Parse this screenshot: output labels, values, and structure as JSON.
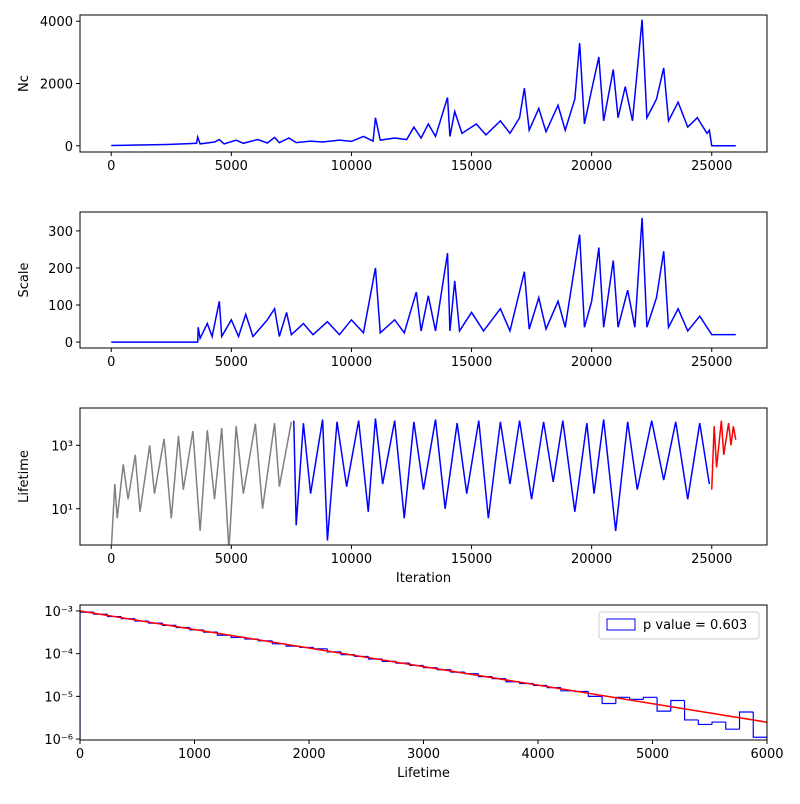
{
  "chart_data": [
    {
      "type": "line",
      "ylabel": "Nc",
      "xlim": [
        -1300,
        27300
      ],
      "ylim": [
        -200,
        4200
      ],
      "xticks": [
        0,
        5000,
        10000,
        15000,
        20000,
        25000
      ],
      "yticks": [
        0,
        2000,
        4000
      ],
      "series": [
        {
          "color": "blue",
          "x": [
            0,
            800,
            1500,
            2300,
            3000,
            3550,
            3600,
            3700,
            4300,
            4500,
            4700,
            5200,
            5500,
            6100,
            6500,
            6800,
            7000,
            7400,
            7700,
            8300,
            8800,
            9500,
            10000,
            10500,
            10900,
            11000,
            11200,
            11800,
            12300,
            12600,
            12900,
            13200,
            13500,
            14000,
            14100,
            14300,
            14600,
            15200,
            15600,
            16200,
            16600,
            17000,
            17200,
            17400,
            17800,
            18100,
            18600,
            18900,
            19300,
            19500,
            19700,
            20000,
            20300,
            20500,
            20900,
            21100,
            21400,
            21700,
            22100,
            22300,
            22700,
            23000,
            23200,
            23600,
            24000,
            24400,
            24800,
            24900,
            25000,
            26000
          ],
          "values": [
            10,
            20,
            30,
            40,
            60,
            80,
            280,
            60,
            120,
            200,
            60,
            180,
            80,
            200,
            90,
            270,
            100,
            250,
            100,
            150,
            120,
            180,
            140,
            300,
            150,
            900,
            180,
            250,
            200,
            600,
            250,
            700,
            300,
            1550,
            300,
            1100,
            400,
            700,
            350,
            800,
            400,
            900,
            1850,
            500,
            1200,
            450,
            1300,
            500,
            1500,
            3300,
            700,
            1800,
            2850,
            800,
            2450,
            900,
            1900,
            800,
            4050,
            900,
            1500,
            2500,
            800,
            1400,
            600,
            900,
            400,
            500,
            0,
            0
          ]
        }
      ]
    },
    {
      "type": "line",
      "ylabel": "Scale",
      "xlim": [
        -1300,
        27300
      ],
      "ylim": [
        -16,
        351
      ],
      "xticks": [
        0,
        5000,
        10000,
        15000,
        20000,
        25000
      ],
      "yticks": [
        0,
        100,
        200,
        300
      ],
      "series": [
        {
          "color": "blue",
          "x": [
            0,
            3600,
            3620,
            3700,
            4000,
            4200,
            4500,
            4600,
            5000,
            5300,
            5600,
            5900,
            6500,
            6800,
            7000,
            7300,
            7500,
            8000,
            8400,
            9000,
            9500,
            10000,
            10500,
            11000,
            11200,
            11800,
            12200,
            12700,
            12900,
            13200,
            13500,
            14000,
            14100,
            14300,
            14500,
            15000,
            15500,
            16200,
            16600,
            17200,
            17400,
            17800,
            18100,
            18600,
            18900,
            19500,
            19700,
            20000,
            20300,
            20500,
            20900,
            21100,
            21500,
            21800,
            22100,
            22300,
            22700,
            23000,
            23200,
            23600,
            24000,
            24500,
            24900,
            25000,
            26000
          ],
          "values": [
            0,
            0,
            40,
            10,
            50,
            15,
            110,
            15,
            60,
            15,
            75,
            15,
            60,
            90,
            15,
            80,
            20,
            50,
            20,
            55,
            20,
            60,
            25,
            200,
            25,
            60,
            25,
            135,
            30,
            125,
            30,
            240,
            30,
            165,
            30,
            80,
            30,
            90,
            30,
            190,
            35,
            120,
            35,
            110,
            40,
            290,
            40,
            110,
            255,
            40,
            220,
            40,
            140,
            40,
            335,
            40,
            120,
            245,
            40,
            90,
            30,
            70,
            30,
            20,
            20
          ]
        }
      ]
    },
    {
      "type": "line",
      "ylabel": "Lifetime",
      "xlabel": "Iteration",
      "log_y": true,
      "xlim": [
        -1300,
        27300
      ],
      "ylim": [
        0.72,
        15000
      ],
      "xticks": [
        0,
        5000,
        10000,
        15000,
        20000,
        25000
      ],
      "yticks": [
        {
          "value": 10,
          "label": "10¹"
        },
        {
          "value": 1000,
          "label": "10³"
        }
      ],
      "series": [
        {
          "color": "gray",
          "x": [
            0,
            150,
            250,
            500,
            700,
            1000,
            1200,
            1600,
            1800,
            2200,
            2500,
            2800,
            3000,
            3400,
            3700,
            4000,
            4300,
            4600,
            4900,
            5200,
            5500,
            6000,
            6300,
            6800,
            7000,
            7500
          ],
          "values": [
            0.5,
            60,
            5,
            250,
            20,
            500,
            8,
            1000,
            30,
            1600,
            5,
            2000,
            40,
            2800,
            2,
            3000,
            20,
            3500,
            0.5,
            4000,
            30,
            4800,
            10,
            5000,
            50,
            5500
          ]
        },
        {
          "color": "blue",
          "x": [
            7600,
            7700,
            8000,
            8300,
            8800,
            9000,
            9400,
            9800,
            10300,
            10700,
            11000,
            11300,
            11800,
            12200,
            12600,
            13000,
            13500,
            13900,
            14400,
            14800,
            15300,
            15700,
            16200,
            16600,
            17000,
            17500,
            18000,
            18400,
            18800,
            19300,
            19800,
            20100,
            20500,
            21000,
            21500,
            21900,
            22500,
            23000,
            23500,
            24000,
            24500,
            24900
          ],
          "values": [
            6000,
            3,
            5000,
            30,
            6500,
            1,
            5500,
            50,
            6000,
            8,
            7000,
            60,
            6000,
            5,
            5500,
            40,
            6500,
            10,
            5000,
            30,
            6000,
            5,
            5500,
            60,
            6000,
            20,
            5500,
            70,
            6000,
            8,
            5000,
            30,
            6500,
            2,
            5500,
            40,
            6000,
            80,
            5500,
            20,
            5000,
            60
          ]
        },
        {
          "color": "red",
          "x": [
            25000,
            25100,
            25200,
            25400,
            25500,
            25700,
            25800,
            25900,
            26000
          ],
          "values": [
            40,
            4000,
            200,
            6000,
            500,
            5000,
            1000,
            4000,
            1500
          ]
        }
      ]
    },
    {
      "type": "histogram",
      "xlabel": "Lifetime",
      "log_y": true,
      "xlim": [
        0,
        6000
      ],
      "ylim": [
        9.5e-07,
        0.00138
      ],
      "xticks": [
        0,
        1000,
        2000,
        3000,
        4000,
        5000,
        6000
      ],
      "yticks": [
        {
          "value": 1e-06,
          "label": "10⁻⁶"
        },
        {
          "value": 1e-05,
          "label": "10⁻⁵"
        },
        {
          "value": 0.0001,
          "label": "10⁻⁴"
        },
        {
          "value": 0.001,
          "label": "10⁻³"
        }
      ],
      "legend": "upper right",
      "name": "p value = 0.603",
      "color": "blue",
      "bins": [
        0,
        120,
        240,
        360,
        480,
        600,
        720,
        840,
        960,
        1080,
        1200,
        1320,
        1440,
        1560,
        1680,
        1800,
        1920,
        2040,
        2160,
        2280,
        2400,
        2520,
        2640,
        2760,
        2880,
        3000,
        3120,
        3240,
        3360,
        3480,
        3600,
        3720,
        3840,
        3960,
        4080,
        4200,
        4320,
        4440,
        4560,
        4680,
        4800,
        4920,
        5040,
        5160,
        5280,
        5400,
        5520,
        5640,
        5760,
        5880,
        6000
      ],
      "values": [
        0.00094,
        0.00084,
        0.00074,
        0.00066,
        0.00058,
        0.00052,
        0.00046,
        0.00041,
        0.00036,
        0.00032,
        0.00027,
        0.00024,
        0.00022,
        0.0002,
        0.00017,
        0.00015,
        0.00014,
        0.00013,
        0.00011,
        9.5e-05,
        8.6e-05,
        7.5e-05,
        6.6e-05,
        6e-05,
        5.3e-05,
        4.7e-05,
        4.2e-05,
        3.7e-05,
        3.4e-05,
        2.9e-05,
        2.6e-05,
        2.2e-05,
        2e-05,
        1.8e-05,
        1.6e-05,
        1.35e-05,
        1.3e-05,
        1e-05,
        6.8e-06,
        9.5e-06,
        8.5e-06,
        9.5e-06,
        4.5e-06,
        8e-06,
        2.8e-06,
        2.2e-06,
        2.5e-06,
        1.7e-06,
        4.3e-06,
        1.1e-06
      ],
      "fit": {
        "color": "red",
        "x": [
          0,
          6000
        ],
        "values": [
          0.001,
          2.48e-06
        ]
      }
    }
  ]
}
